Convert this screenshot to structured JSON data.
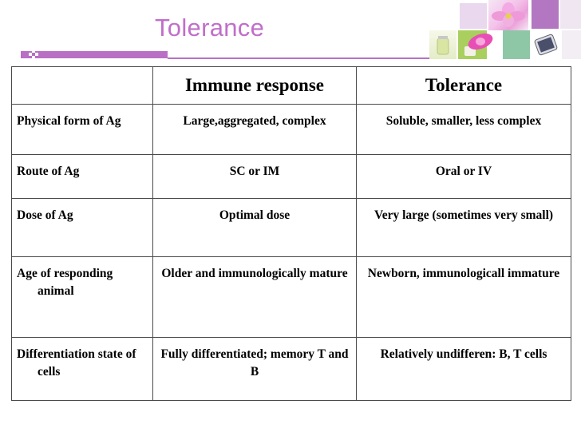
{
  "slide": {
    "title": "Tolerance"
  },
  "table": {
    "headers": [
      "",
      "Immune response",
      "Tolerance"
    ],
    "rows": [
      {
        "label": "Physical form of  Ag",
        "immune": "Large,aggregated, complex",
        "tolerance": "Soluble, smaller, less complex"
      },
      {
        "label": "Route of Ag",
        "immune": "SC or IM",
        "tolerance": "Oral or IV"
      },
      {
        "label": "Dose of Ag",
        "immune": "Optimal dose",
        "tolerance": "Very large (sometimes very small)"
      },
      {
        "label": "Age of responding animal",
        "immune": "Older and immunologically mature",
        "tolerance": "Newborn,  immunologicall immature"
      },
      {
        "label": "Differentiation state of cells",
        "immune": "Fully differentiated; memory T and B",
        "tolerance": "Relatively undifferen: B, T cells"
      }
    ]
  },
  "colors": {
    "accent": "#c06fc9",
    "rule": "#b86fc4",
    "grid": "#4a4a4a"
  }
}
